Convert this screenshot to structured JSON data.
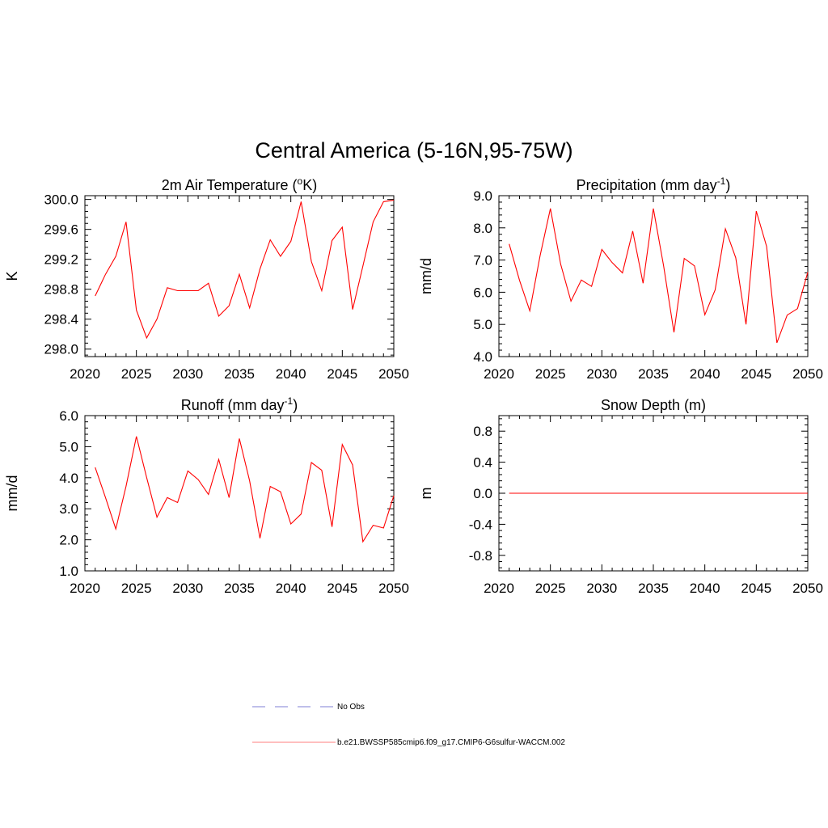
{
  "figure": {
    "title": "Central America (5-16N,95-75W)"
  },
  "chart_data": [
    {
      "type": "line",
      "title": "2m Air Temperature (",
      "title_super": "o",
      "title_suffix": "K)",
      "xlabel": "",
      "ylabel": "K",
      "xlim": [
        2020,
        2050
      ],
      "ylim": [
        297.9,
        300.05
      ],
      "xticks": [
        2020,
        2025,
        2030,
        2035,
        2040,
        2045,
        2050
      ],
      "xtick_labels": [
        "2020",
        "2025",
        "2030",
        "2035",
        "2040",
        "2045",
        "2050"
      ],
      "yticks": [
        298.0,
        298.4,
        298.8,
        299.2,
        299.6,
        300.0
      ],
      "ytick_labels": [
        "298.0",
        "298.4",
        "298.8",
        "299.2",
        "299.6",
        "300.0"
      ],
      "series": [
        {
          "color": "#ff0000",
          "x": [
            2021,
            2022,
            2023,
            2024,
            2025,
            2026,
            2027,
            2028,
            2029,
            2030,
            2031,
            2032,
            2033,
            2034,
            2035,
            2036,
            2037,
            2038,
            2039,
            2040,
            2041,
            2042,
            2043,
            2044,
            2045,
            2046,
            2047,
            2048,
            2049,
            2050
          ],
          "y": [
            298.71,
            299.0,
            299.24,
            299.7,
            298.52,
            298.15,
            298.4,
            298.82,
            298.78,
            298.78,
            298.78,
            298.88,
            298.44,
            298.58,
            299.0,
            298.55,
            299.07,
            299.46,
            299.24,
            299.44,
            299.97,
            299.17,
            298.78,
            299.45,
            299.63,
            298.53,
            299.11,
            299.7,
            299.97,
            299.99
          ]
        }
      ]
    },
    {
      "type": "line",
      "title": "Precipitation (mm day",
      "title_super": "-1",
      "title_suffix": ")",
      "xlabel": "",
      "ylabel": "mm/d",
      "xlim": [
        2020,
        2050
      ],
      "ylim": [
        4.0,
        9.0
      ],
      "xticks": [
        2020,
        2025,
        2030,
        2035,
        2040,
        2045,
        2050
      ],
      "xtick_labels": [
        "2020",
        "2025",
        "2030",
        "2035",
        "2040",
        "2045",
        "2050"
      ],
      "yticks": [
        4.0,
        5.0,
        6.0,
        7.0,
        8.0,
        9.0
      ],
      "ytick_labels": [
        "4.0",
        "5.0",
        "6.0",
        "7.0",
        "8.0",
        "9.0"
      ],
      "series": [
        {
          "color": "#ff0000",
          "x": [
            2021,
            2022,
            2023,
            2024,
            2025,
            2026,
            2027,
            2028,
            2029,
            2030,
            2031,
            2032,
            2033,
            2034,
            2035,
            2036,
            2037,
            2038,
            2039,
            2040,
            2041,
            2042,
            2043,
            2044,
            2045,
            2046,
            2047,
            2048,
            2049,
            2050
          ],
          "y": [
            7.5,
            6.37,
            5.42,
            7.13,
            8.6,
            6.87,
            5.72,
            6.38,
            6.18,
            7.33,
            6.92,
            6.6,
            7.9,
            6.28,
            8.6,
            6.82,
            4.75,
            7.05,
            6.82,
            5.3,
            6.07,
            7.97,
            7.07,
            5.0,
            8.52,
            7.42,
            4.43,
            5.29,
            5.49,
            6.62
          ]
        }
      ]
    },
    {
      "type": "line",
      "title": "Runoff (mm day",
      "title_super": "-1",
      "title_suffix": ")",
      "xlabel": "",
      "ylabel": "mm/d",
      "xlim": [
        2020,
        2050
      ],
      "ylim": [
        1.0,
        6.0
      ],
      "xticks": [
        2020,
        2025,
        2030,
        2035,
        2040,
        2045,
        2050
      ],
      "xtick_labels": [
        "2020",
        "2025",
        "2030",
        "2035",
        "2040",
        "2045",
        "2050"
      ],
      "yticks": [
        1.0,
        2.0,
        3.0,
        4.0,
        5.0,
        6.0
      ],
      "ytick_labels": [
        "1.0",
        "2.0",
        "3.0",
        "4.0",
        "5.0",
        "6.0"
      ],
      "series": [
        {
          "color": "#ff0000",
          "x": [
            2021,
            2022,
            2023,
            2024,
            2025,
            2026,
            2027,
            2028,
            2029,
            2030,
            2031,
            2032,
            2033,
            2034,
            2035,
            2036,
            2037,
            2038,
            2039,
            2040,
            2041,
            2042,
            2043,
            2044,
            2045,
            2046,
            2047,
            2048,
            2049,
            2050
          ],
          "y": [
            4.33,
            3.36,
            2.35,
            3.73,
            5.33,
            4.0,
            2.73,
            3.36,
            3.2,
            4.22,
            3.94,
            3.46,
            4.59,
            3.36,
            5.26,
            3.9,
            2.05,
            3.72,
            3.55,
            2.51,
            2.83,
            4.49,
            4.24,
            2.42,
            5.07,
            4.41,
            1.94,
            2.47,
            2.38,
            3.42
          ]
        }
      ]
    },
    {
      "type": "line",
      "title": "Snow Depth (m)",
      "title_super": "",
      "title_suffix": "",
      "xlabel": "",
      "ylabel": "m",
      "xlim": [
        2020,
        2050
      ],
      "ylim": [
        -1.0,
        1.0
      ],
      "xticks": [
        2020,
        2025,
        2030,
        2035,
        2040,
        2045,
        2050
      ],
      "xtick_labels": [
        "2020",
        "2025",
        "2030",
        "2035",
        "2040",
        "2045",
        "2050"
      ],
      "yticks": [
        -0.8,
        -0.4,
        0.0,
        0.4,
        0.8
      ],
      "ytick_labels": [
        "-0.8",
        "-0.4",
        "0.0",
        "0.4",
        "0.8"
      ],
      "series": [
        {
          "color": "#ff0000",
          "x": [
            2021,
            2022,
            2023,
            2024,
            2025,
            2026,
            2027,
            2028,
            2029,
            2030,
            2031,
            2032,
            2033,
            2034,
            2035,
            2036,
            2037,
            2038,
            2039,
            2040,
            2041,
            2042,
            2043,
            2044,
            2045,
            2046,
            2047,
            2048,
            2049,
            2050
          ],
          "y": [
            0,
            0,
            0,
            0,
            0,
            0,
            0,
            0,
            0,
            0,
            0,
            0,
            0,
            0,
            0,
            0,
            0,
            0,
            0,
            0,
            0,
            0,
            0,
            0,
            0,
            0,
            0,
            0,
            0,
            0
          ]
        }
      ]
    }
  ],
  "legend": {
    "items": [
      {
        "label": "No Obs",
        "color": "#9999dd",
        "style": "dashed"
      },
      {
        "label": "b.e21.BWSSP585cmip6.f09_g17.CMIP6-G6sulfur-WACCM.002",
        "color": "#ff9999",
        "style": "solid"
      }
    ]
  }
}
